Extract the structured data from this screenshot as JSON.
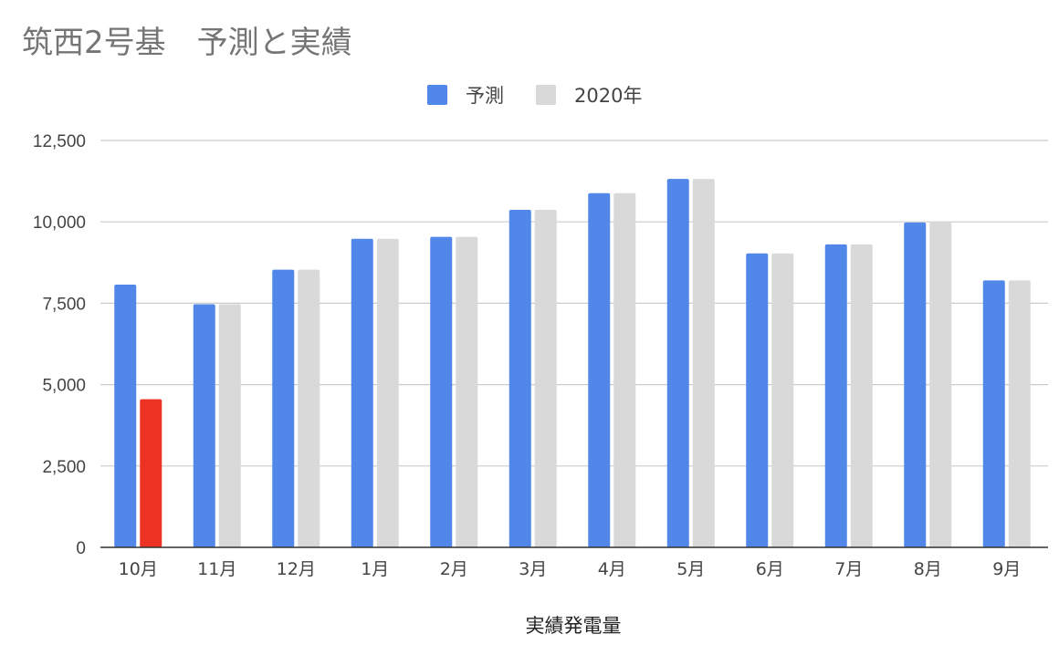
{
  "chart_data": {
    "type": "bar",
    "title": "筑西2号基　予測と実績",
    "xlabel": "実績発電量",
    "ylabel": "",
    "ylim": [
      0,
      12500
    ],
    "yticks": [
      0,
      2500,
      5000,
      7500,
      10000,
      12500
    ],
    "ytick_labels": [
      "0",
      "2,500",
      "5,000",
      "7,500",
      "10,000",
      "12,500"
    ],
    "categories": [
      "10月",
      "11月",
      "12月",
      "1月",
      "2月",
      "3月",
      "4月",
      "5月",
      "6月",
      "7月",
      "8月",
      "9月"
    ],
    "series": [
      {
        "name": "予測",
        "color": "#5087e8",
        "values": [
          8070,
          7470,
          8530,
          9480,
          9540,
          10370,
          10880,
          11320,
          9030,
          9310,
          9980,
          8200
        ]
      },
      {
        "name": "2020年",
        "color": "#d9d9d9",
        "values": [
          4550,
          7470,
          8530,
          9480,
          9540,
          10370,
          10880,
          11320,
          9030,
          9310,
          9980,
          8200
        ]
      }
    ],
    "highlight": {
      "series": 1,
      "index": 0,
      "color": "#ec3323"
    },
    "grid": true,
    "legend_position": "top-center"
  }
}
